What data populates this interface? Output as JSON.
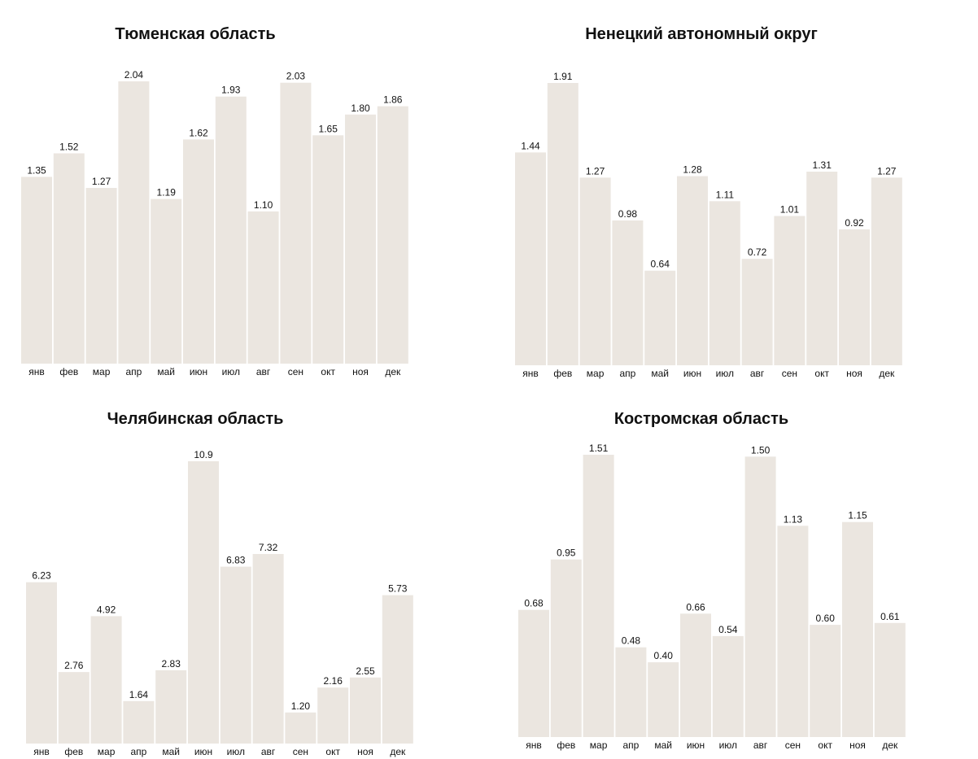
{
  "chart_data": [
    {
      "type": "bar",
      "title": "Тюменская область",
      "categories": [
        "янв",
        "фев",
        "мар",
        "апр",
        "май",
        "июн",
        "июл",
        "авг",
        "сен",
        "окт",
        "ноя",
        "дек"
      ],
      "values": [
        1.35,
        1.52,
        1.27,
        2.04,
        1.19,
        1.62,
        1.93,
        1.1,
        2.03,
        1.65,
        1.8,
        1.86
      ],
      "labels": [
        "1.35",
        "1.52",
        "1.27",
        "2.04",
        "1.19",
        "1.62",
        "1.93",
        "1.10",
        "2.03",
        "1.65",
        "1.80",
        "1.86"
      ],
      "ylim": [
        0,
        2.04
      ]
    },
    {
      "type": "bar",
      "title": "Ненецкий автономный округ",
      "categories": [
        "янв",
        "фев",
        "мар",
        "апр",
        "май",
        "июн",
        "июл",
        "авг",
        "сен",
        "окт",
        "ноя",
        "дек"
      ],
      "values": [
        1.44,
        1.91,
        1.27,
        0.98,
        0.64,
        1.28,
        1.11,
        0.72,
        1.01,
        1.31,
        0.92,
        1.27
      ],
      "labels": [
        "1.44",
        "1.91",
        "1.27",
        "0.98",
        "0.64",
        "1.28",
        "1.11",
        "0.72",
        "1.01",
        "1.31",
        "0.92",
        "1.27"
      ],
      "ylim": [
        0,
        1.91
      ]
    },
    {
      "type": "bar",
      "title": "Челябинская область",
      "categories": [
        "янв",
        "фев",
        "мар",
        "апр",
        "май",
        "июн",
        "июл",
        "авг",
        "сен",
        "окт",
        "ноя",
        "дек"
      ],
      "values": [
        6.23,
        2.76,
        4.92,
        1.64,
        2.83,
        10.9,
        6.83,
        7.32,
        1.2,
        2.16,
        2.55,
        5.73
      ],
      "labels": [
        "6.23",
        "2.76",
        "4.92",
        "1.64",
        "2.83",
        "10.9",
        "6.83",
        "7.32",
        "1.20",
        "2.16",
        "2.55",
        "5.73"
      ],
      "ylim": [
        0,
        10.9
      ]
    },
    {
      "type": "bar",
      "title": "Костромская область",
      "categories": [
        "янв",
        "фев",
        "мар",
        "апр",
        "май",
        "июн",
        "июл",
        "авг",
        "сен",
        "окт",
        "ноя",
        "дек"
      ],
      "values": [
        0.68,
        0.95,
        1.51,
        0.48,
        0.4,
        0.66,
        0.54,
        1.5,
        1.13,
        0.6,
        1.15,
        0.61
      ],
      "labels": [
        "0.68",
        "0.95",
        "1.51",
        "0.48",
        "0.40",
        "0.66",
        "0.54",
        "1.50",
        "1.13",
        "0.60",
        "1.15",
        "0.61"
      ],
      "ylim": [
        0,
        1.51
      ]
    }
  ],
  "colors": {
    "bar": "#ebe6e0",
    "text": "#111111"
  }
}
